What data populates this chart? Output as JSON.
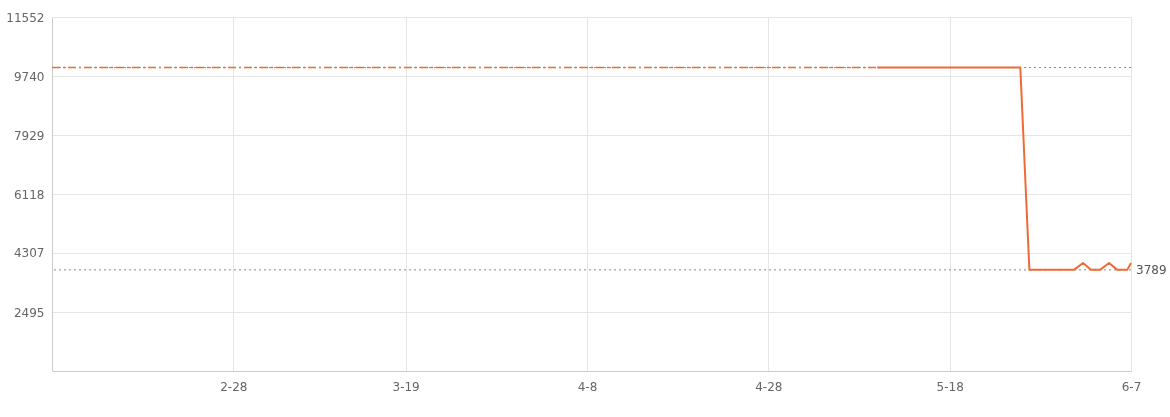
{
  "chart_data": {
    "type": "line",
    "series": [
      {
        "color": "#ef6b36",
        "line_style": "dashed",
        "x": [
          "--02-08",
          "--05-10"
        ],
        "values": [
          10000,
          10000
        ]
      },
      {
        "color": "#ef6b36",
        "line_style": "solid",
        "x": [
          "--05-10",
          "--05-25T19:00",
          "--05-26T19:00",
          "--05-31T17:00",
          "--06-01T17:00",
          "--06-02T14:00",
          "--06-03T14:00",
          "--06-04T14:00",
          "--06-05T12:00",
          "--06-06T14:00",
          "--06-07"
        ],
        "values": [
          10000,
          10000,
          3789,
          3789,
          4000,
          3789,
          3789,
          4000,
          3789,
          3789,
          4000
        ]
      }
    ],
    "xlim": [
      "--02-08",
      "--06-07"
    ],
    "xticks": [
      {
        "value": "--02-28",
        "label": "2-28"
      },
      {
        "value": "--03-19",
        "label": "3-19"
      },
      {
        "value": "--04-08",
        "label": "4-8"
      },
      {
        "value": "--04-28",
        "label": "4-28"
      },
      {
        "value": "--05-18",
        "label": "5-18"
      },
      {
        "value": "--06-07",
        "label": "6-7"
      }
    ],
    "ylim": [
      684,
      11552
    ],
    "yticks": [
      11552,
      9740,
      7929,
      6118,
      4307,
      2495
    ],
    "ref_lines": [
      {
        "axis": "y",
        "value": 10000,
        "color": "#888888",
        "line_style": "dotted"
      },
      {
        "axis": "y",
        "value": 3789,
        "label": "3789",
        "color": "#888888",
        "line_style": "dotted"
      }
    ],
    "grid": true
  }
}
